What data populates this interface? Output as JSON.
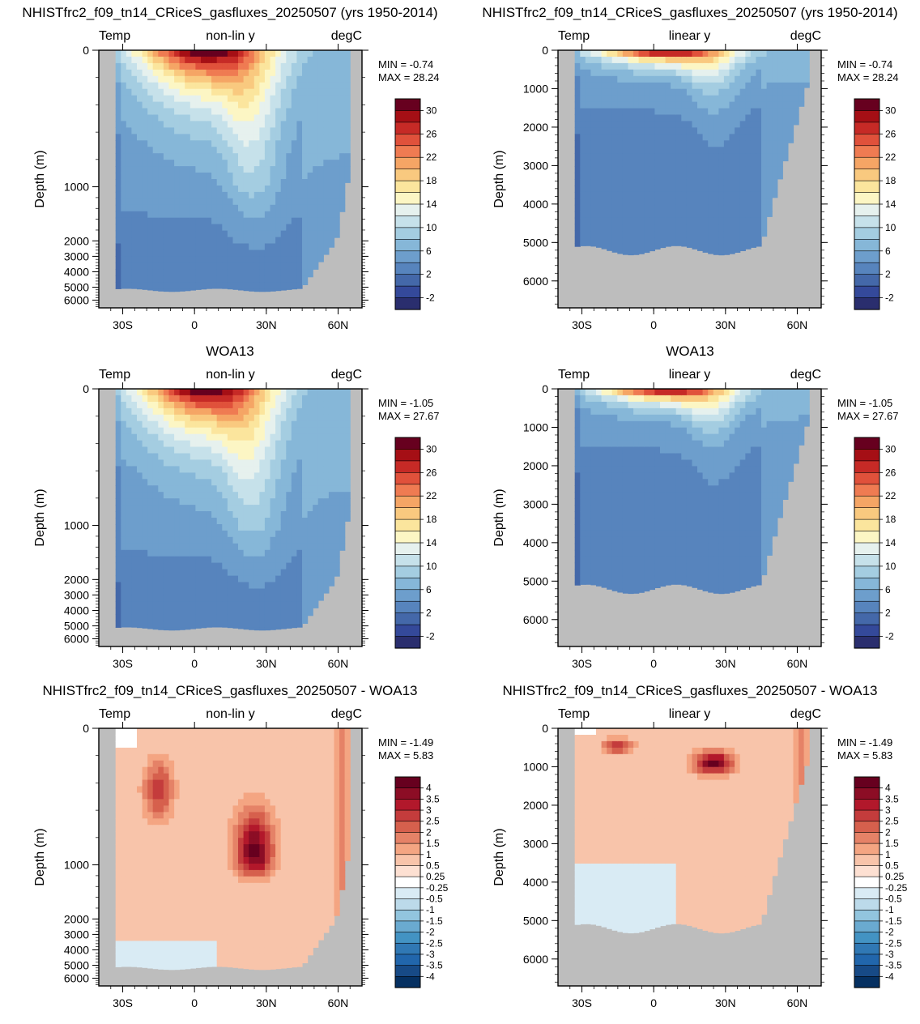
{
  "rows": [
    {
      "title": "NHISTfrc2_f09_tn14_CRiceS_gasfluxes_20250507 (yrs 1950-2014)",
      "title_scope": "per-panel",
      "stats": {
        "min": "MIN =  -0.74",
        "max": "MAX =  28.24"
      },
      "kind": "model"
    },
    {
      "title": "WOA13",
      "title_scope": "per-panel",
      "stats": {
        "min": "MIN =  -1.05",
        "max": "MAX =  27.67"
      },
      "kind": "obs"
    },
    {
      "title": "NHISTfrc2_f09_tn14_CRiceS_gasfluxes_20250507 - WOA13",
      "title_scope": "per-panel",
      "stats": {
        "min": "MIN =  -1.49",
        "max": "MAX =   5.83"
      },
      "kind": "diff"
    }
  ],
  "panel_labels": {
    "left": "Temp",
    "right": "degC",
    "center_nonlin": "non-lin y",
    "center_linear": "linear y"
  },
  "y_axis_label": "Depth (m)",
  "x_ticks": [
    "30S",
    "0",
    "30N",
    "60N"
  ],
  "x_tick_values": [
    -30,
    0,
    30,
    60
  ],
  "y_ticks_nonlin": [
    "0",
    "1000",
    "2000",
    "3000",
    "4000",
    "5000",
    "6000"
  ],
  "y_ticks_linear": [
    "0",
    "1000",
    "2000",
    "3000",
    "4000",
    "5000",
    "6000"
  ],
  "colorbar_temp": {
    "labels": [
      "30",
      "26",
      "22",
      "18",
      "14",
      "10",
      "6",
      "2",
      "-2"
    ],
    "colors": [
      "#67001f",
      "#a50f15",
      "#c62a26",
      "#e0513b",
      "#ef7b52",
      "#f5a565",
      "#f9c97f",
      "#fbe59d",
      "#fcf6c4",
      "#e6f1ee",
      "#c6e1ea",
      "#a4cde1",
      "#86b7d8",
      "#6d9ecc",
      "#5784bd",
      "#4468a9",
      "#34499a",
      "#2a2e6e"
    ]
  },
  "colorbar_diff": {
    "labels": [
      "4",
      "3.5",
      "3",
      "2.5",
      "2",
      "1.5",
      "1",
      "0.5",
      "0.25",
      "-0.25",
      "-0.5",
      "-1",
      "-1.5",
      "-2",
      "-2.5",
      "-3",
      "-3.5",
      "-4"
    ],
    "colors": [
      "#67001f",
      "#8c0d25",
      "#b2182b",
      "#c43c3c",
      "#d6604d",
      "#e58267",
      "#f4a582",
      "#f8c4aa",
      "#fde0d2",
      "#ffffff",
      "#d9ebf4",
      "#bcdaea",
      "#92c5de",
      "#6aaad0",
      "#4393c3",
      "#3078b4",
      "#2166ac",
      "#174a86",
      "#053061"
    ]
  },
  "chart_data": [
    {
      "type": "heatmap",
      "panel": "row1-left",
      "field": "Temp",
      "y_scale": "non-linear",
      "x_range": [
        -40,
        70
      ],
      "y_range": [
        6700,
        0
      ],
      "min": -0.74,
      "max": 28.24,
      "units": "degC"
    },
    {
      "type": "heatmap",
      "panel": "row1-right",
      "field": "Temp",
      "y_scale": "linear",
      "x_range": [
        -40,
        70
      ],
      "y_range": [
        6700,
        0
      ],
      "min": -0.74,
      "max": 28.24,
      "units": "degC"
    },
    {
      "type": "heatmap",
      "panel": "row2-left",
      "field": "Temp",
      "y_scale": "non-linear",
      "x_range": [
        -40,
        70
      ],
      "y_range": [
        6700,
        0
      ],
      "min": -1.05,
      "max": 27.67,
      "units": "degC"
    },
    {
      "type": "heatmap",
      "panel": "row2-right",
      "field": "Temp",
      "y_scale": "linear",
      "x_range": [
        -40,
        70
      ],
      "y_range": [
        6700,
        0
      ],
      "min": -1.05,
      "max": 27.67,
      "units": "degC"
    },
    {
      "type": "heatmap",
      "panel": "row3-left",
      "field": "Temp",
      "y_scale": "non-linear",
      "x_range": [
        -40,
        70
      ],
      "y_range": [
        6700,
        0
      ],
      "min": -1.49,
      "max": 5.83,
      "units": "degC"
    },
    {
      "type": "heatmap",
      "panel": "row3-right",
      "field": "Temp",
      "y_scale": "linear",
      "x_range": [
        -40,
        70
      ],
      "y_range": [
        6700,
        0
      ],
      "min": -1.49,
      "max": 5.83,
      "units": "degC"
    }
  ]
}
